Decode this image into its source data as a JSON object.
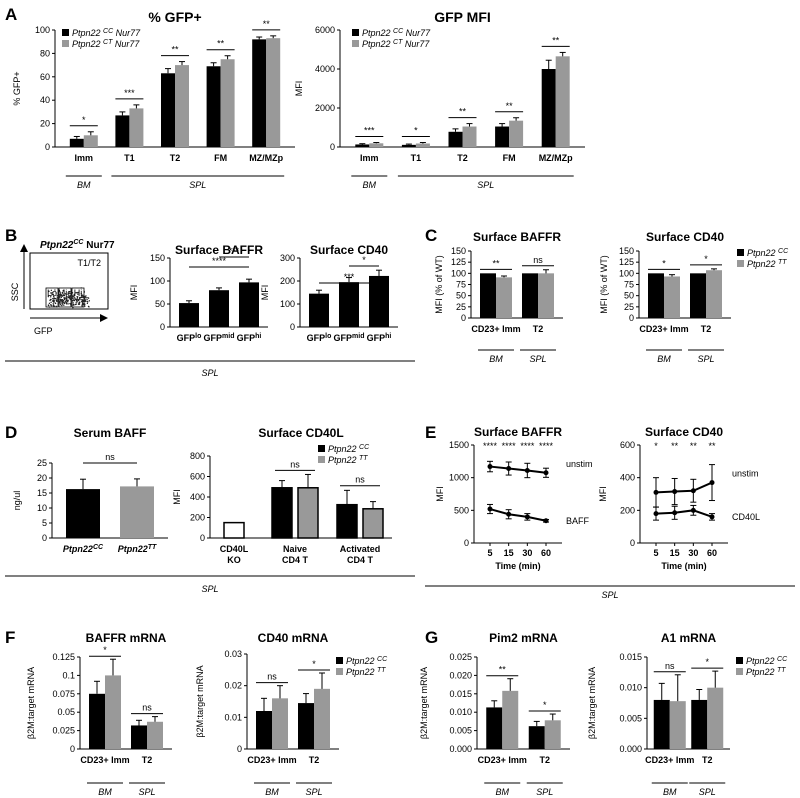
{
  "colors": {
    "cc": "#000000",
    "ct": "#999999",
    "ko": "#ffffff"
  },
  "panel_letters": [
    "A",
    "B",
    "C",
    "D",
    "E",
    "F",
    "G"
  ],
  "regions": {
    "bm": "BM",
    "spl": "SPL"
  },
  "flow": {
    "title_main": "Ptpn22",
    "title_sup": "CC",
    "title_rest": " Nur77",
    "gate": "T1/T2",
    "xlabel": "GFP",
    "ylabel": "SSC",
    "gate_labels": [
      "Lo",
      "Mid",
      "Hi"
    ]
  },
  "chart_data": [
    {
      "id": "A1",
      "type": "bar",
      "title": "% GFP+",
      "ylabel": "% GFP+",
      "ylim": [
        0,
        100
      ],
      "yticks": [
        0,
        20,
        40,
        60,
        80,
        100
      ],
      "categories": [
        "Imm",
        "T1",
        "T2",
        "FM",
        "MZ/MZp"
      ],
      "series": [
        {
          "name": "Ptpn22 CC Nur77",
          "values": [
            7,
            27,
            63,
            69,
            92
          ],
          "errors": [
            2,
            3,
            4,
            3,
            2
          ]
        },
        {
          "name": "Ptpn22 CT Nur77",
          "values": [
            10,
            33,
            70,
            75,
            93
          ],
          "errors": [
            3,
            3,
            3,
            3,
            2
          ]
        }
      ],
      "sig": [
        "*",
        "***",
        "**",
        "**",
        "**"
      ],
      "legend": [
        [
          "Ptpn22 ",
          "CC",
          " Nur77"
        ],
        [
          "Ptpn22 ",
          "CT",
          " Nur77"
        ]
      ],
      "groups": [
        [
          "BM",
          0,
          0
        ],
        [
          "SPL",
          1,
          4
        ]
      ]
    },
    {
      "id": "A2",
      "type": "bar",
      "title": "GFP MFI",
      "ylabel": "MFI",
      "ylim": [
        0,
        6000
      ],
      "yticks": [
        0,
        2000,
        4000,
        6000
      ],
      "categories": [
        "Imm",
        "T1",
        "T2",
        "FM",
        "MZ/MZp"
      ],
      "series": [
        {
          "name": "Ptpn22 CC Nur77",
          "values": [
            130,
            110,
            780,
            1050,
            4000
          ],
          "errors": [
            40,
            40,
            150,
            150,
            450
          ]
        },
        {
          "name": "Ptpn22 CT Nur77",
          "values": [
            190,
            180,
            1050,
            1350,
            4650
          ],
          "errors": [
            40,
            50,
            150,
            150,
            200
          ]
        }
      ],
      "sig": [
        "***",
        "*",
        "**",
        "**",
        "**"
      ],
      "legend": [
        [
          "Ptpn22 ",
          "CC",
          " Nur77"
        ],
        [
          "Ptpn22 ",
          "CT",
          " Nur77"
        ]
      ],
      "groups": [
        [
          "BM",
          0,
          0
        ],
        [
          "SPL",
          1,
          4
        ]
      ]
    },
    {
      "id": "B1",
      "type": "bar",
      "title": "Surface BAFFR",
      "ylabel": "MFI",
      "ylim": [
        0,
        150
      ],
      "yticks": [
        0,
        50,
        100,
        150
      ],
      "categories": [
        "GFP|lo",
        "GFP|mid",
        "GFP|hi"
      ],
      "values": [
        52,
        80,
        97
      ],
      "errors": [
        5,
        5,
        7
      ],
      "sig": [
        [
          0,
          2,
          "****"
        ],
        [
          1,
          2,
          "***"
        ]
      ]
    },
    {
      "id": "B2",
      "type": "bar",
      "title": "Surface CD40",
      "ylabel": "MFI",
      "ylim": [
        0,
        300
      ],
      "yticks": [
        0,
        100,
        200,
        300
      ],
      "categories": [
        "GFP|lo",
        "GFP|mid",
        "GFP|hi"
      ],
      "values": [
        145,
        195,
        222
      ],
      "errors": [
        15,
        20,
        25
      ],
      "sig": [
        [
          0,
          2,
          "***"
        ],
        [
          1,
          2,
          "*"
        ]
      ]
    },
    {
      "id": "C1",
      "type": "bar",
      "title": "Surface BAFFR",
      "ylabel": "MFI (% of WT)",
      "ylim": [
        0,
        150
      ],
      "yticks": [
        0,
        25,
        50,
        75,
        100,
        125,
        150
      ],
      "categories": [
        "CD23+ Imm",
        "T2"
      ],
      "series": [
        {
          "name": "Ptpn22 CC",
          "values": [
            100,
            100
          ],
          "errors": [
            0,
            0
          ]
        },
        {
          "name": "Ptpn22 TT",
          "values": [
            91,
            100
          ],
          "errors": [
            3,
            8
          ]
        }
      ],
      "sig": [
        "**",
        "ns"
      ],
      "groups": [
        [
          "BM",
          0,
          0
        ],
        [
          "SPL",
          1,
          1
        ]
      ]
    },
    {
      "id": "C2",
      "type": "bar",
      "title": "Surface CD40",
      "ylabel": "MFI (% of WT)",
      "ylim": [
        0,
        150
      ],
      "yticks": [
        0,
        25,
        50,
        75,
        100,
        125,
        150
      ],
      "categories": [
        "CD23+ Imm",
        "T2"
      ],
      "series": [
        {
          "name": "Ptpn22 CC",
          "values": [
            100,
            100
          ],
          "errors": [
            0,
            0
          ]
        },
        {
          "name": "Ptpn22 TT",
          "values": [
            93,
            107
          ],
          "errors": [
            4,
            3
          ]
        }
      ],
      "sig": [
        "*",
        "*"
      ],
      "legend": [
        [
          "Ptpn22 ",
          "CC",
          ""
        ],
        [
          "Ptpn22 ",
          "TT",
          ""
        ]
      ],
      "groups": [
        [
          "BM",
          0,
          0
        ],
        [
          "SPL",
          1,
          1
        ]
      ]
    },
    {
      "id": "D1",
      "type": "bar",
      "title": "Serum BAFF",
      "ylabel": "ng/ul",
      "ylim": [
        0,
        25
      ],
      "yticks": [
        0,
        5,
        10,
        15,
        20,
        25
      ],
      "categories": [
        "Ptpn22|CC",
        "Ptpn22|TT"
      ],
      "values": [
        16.3,
        17.2
      ],
      "errors": [
        3.3,
        2.5
      ],
      "bar_colors": [
        "#000000",
        "#999999"
      ],
      "sig": [
        [
          0,
          1,
          "ns"
        ]
      ]
    },
    {
      "id": "D2",
      "type": "bar",
      "title": "Surface CD40L",
      "ylabel": "MFI",
      "ylim": [
        0,
        800
      ],
      "yticks": [
        0,
        200,
        400,
        600,
        800
      ],
      "categories": [
        "CD40L|KO",
        "Naive|CD4 T",
        "Activated|CD4 T"
      ],
      "bars": [
        {
          "cat": 0,
          "value": 150,
          "error": 0,
          "fill": "#ffffff"
        },
        {
          "cat": 1,
          "value": 490,
          "error": 70,
          "fill": "#000000"
        },
        {
          "cat": 1,
          "value": 490,
          "error": 130,
          "fill": "#999999"
        },
        {
          "cat": 2,
          "value": 325,
          "error": 140,
          "fill": "#000000"
        },
        {
          "cat": 2,
          "value": 285,
          "error": 70,
          "fill": "#999999"
        }
      ],
      "sig": [
        "ns",
        "ns"
      ],
      "legend": [
        [
          "Ptpn22 ",
          "CC",
          ""
        ],
        [
          "Ptpn22 ",
          "TT",
          ""
        ]
      ]
    },
    {
      "id": "E1",
      "type": "line",
      "title": "Surface BAFFR",
      "ylabel": "MFI",
      "xlabel": "Time (min)",
      "ylim": [
        0,
        1500
      ],
      "yticks": [
        0,
        500,
        1000,
        1500
      ],
      "x": [
        5,
        15,
        30,
        60
      ],
      "series": [
        {
          "name": "unstim",
          "values": [
            1170,
            1140,
            1110,
            1075
          ],
          "errors": [
            80,
            100,
            110,
            70
          ]
        },
        {
          "name": "BAFF",
          "values": [
            520,
            440,
            400,
            340
          ],
          "errors": [
            70,
            70,
            50,
            20
          ]
        }
      ],
      "sig": [
        "****",
        "****",
        "****",
        "****"
      ]
    },
    {
      "id": "E2",
      "type": "line",
      "title": "Surface CD40",
      "ylabel": "MFI",
      "xlabel": "Time (min)",
      "ylim": [
        0,
        600
      ],
      "yticks": [
        0,
        200,
        400,
        600
      ],
      "x": [
        5,
        15,
        30,
        60
      ],
      "series": [
        {
          "name": "unstim",
          "values": [
            310,
            315,
            320,
            370
          ],
          "errors": [
            90,
            80,
            70,
            110
          ]
        },
        {
          "name": "CD40L",
          "values": [
            180,
            185,
            200,
            160
          ],
          "errors": [
            40,
            40,
            30,
            20
          ]
        }
      ],
      "sig": [
        "*",
        "**",
        "**",
        "**"
      ]
    },
    {
      "id": "F1",
      "type": "bar",
      "title": "BAFFR mRNA",
      "ylabel": "β2M:target mRNA",
      "ylim": [
        0,
        0.125
      ],
      "yticks": [
        0,
        0.025,
        0.05,
        0.075,
        0.1,
        0.125
      ],
      "categories": [
        "CD23+ Imm",
        "T2"
      ],
      "series": [
        {
          "name": "Ptpn22 CC",
          "values": [
            0.075,
            0.032
          ],
          "errors": [
            0.017,
            0.007
          ]
        },
        {
          "name": "Ptpn22 TT",
          "values": [
            0.1,
            0.037
          ],
          "errors": [
            0.022,
            0.007
          ]
        }
      ],
      "sig": [
        "*",
        "ns"
      ],
      "groups": [
        [
          "BM",
          0,
          0
        ],
        [
          "SPL",
          1,
          1
        ]
      ]
    },
    {
      "id": "F2",
      "type": "bar",
      "title": "CD40 mRNA",
      "ylabel": "β2M:target mRNA",
      "ylim": [
        0,
        0.03
      ],
      "yticks": [
        0,
        0.01,
        0.02,
        0.03
      ],
      "categories": [
        "CD23+ Imm",
        "T2"
      ],
      "series": [
        {
          "name": "Ptpn22 CC",
          "values": [
            0.012,
            0.0145
          ],
          "errors": [
            0.004,
            0.003
          ]
        },
        {
          "name": "Ptpn22 TT",
          "values": [
            0.016,
            0.019
          ],
          "errors": [
            0.004,
            0.005
          ]
        }
      ],
      "sig": [
        "ns",
        "*"
      ],
      "legend": [
        [
          "Ptpn22 ",
          "CC",
          ""
        ],
        [
          "Ptpn22 ",
          "TT",
          ""
        ]
      ],
      "groups": [
        [
          "BM",
          0,
          0
        ],
        [
          "SPL",
          1,
          1
        ]
      ]
    },
    {
      "id": "G1",
      "type": "bar",
      "title": "Pim2 mRNA",
      "ylabel": "β2M:target mRNA",
      "ylim": [
        0,
        0.025
      ],
      "yticks": [
        0,
        0.005,
        0.01,
        0.015,
        0.02,
        0.025
      ],
      "ytick_labels": [
        "0.000",
        "0.005",
        "0.010",
        "0.015",
        "0.020",
        "0.025"
      ],
      "categories": [
        "CD23+ Imm",
        "T2"
      ],
      "series": [
        {
          "name": "Ptpn22 CC",
          "values": [
            0.0113,
            0.0062
          ],
          "errors": [
            0.0018,
            0.0013
          ]
        },
        {
          "name": "Ptpn22 TT",
          "values": [
            0.0158,
            0.0078
          ],
          "errors": [
            0.0033,
            0.0017
          ]
        }
      ],
      "sig": [
        "**",
        "*"
      ],
      "groups": [
        [
          "BM",
          0,
          0
        ],
        [
          "SPL",
          1,
          1
        ]
      ]
    },
    {
      "id": "G2",
      "type": "bar",
      "title": "A1 mRNA",
      "ylabel": "β2M:target mRNA",
      "ylim": [
        0,
        0.015
      ],
      "yticks": [
        0,
        0.005,
        0.01,
        0.015
      ],
      "ytick_labels": [
        "0.000",
        "0.005",
        "0.010",
        "0.015"
      ],
      "categories": [
        "CD23+ Imm",
        "T2"
      ],
      "series": [
        {
          "name": "Ptpn22 CC",
          "values": [
            0.008,
            0.008
          ],
          "errors": [
            0.0027,
            0.0017
          ]
        },
        {
          "name": "Ptpn22 TT",
          "values": [
            0.0078,
            0.01
          ],
          "errors": [
            0.0043,
            0.0027
          ]
        }
      ],
      "sig": [
        "ns",
        "*"
      ],
      "legend": [
        [
          "Ptpn22 ",
          "CC",
          ""
        ],
        [
          "Ptpn22 ",
          "TT",
          ""
        ]
      ],
      "groups": [
        [
          "BM",
          0,
          0
        ],
        [
          "SPL",
          1,
          1
        ]
      ]
    }
  ]
}
